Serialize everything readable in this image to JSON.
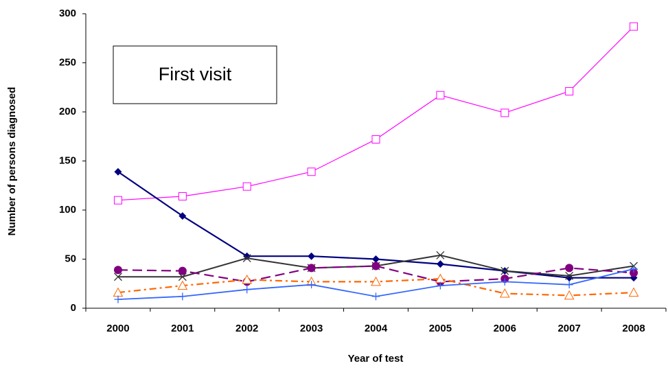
{
  "chart_data": {
    "type": "line",
    "annotation": "First visit",
    "xlabel": "Year of test",
    "ylabel": "Number of persons diagnosed",
    "categories": [
      "2000",
      "2001",
      "2002",
      "2003",
      "2004",
      "2005",
      "2006",
      "2007",
      "2008"
    ],
    "ylim": [
      0,
      300
    ],
    "yticks": [
      0,
      50,
      100,
      150,
      200,
      250,
      300
    ],
    "grid": false,
    "series": [
      {
        "color": "#ff00ff",
        "marker": "square-open",
        "dash": "solid",
        "width": 1.2,
        "values": [
          110,
          114,
          124,
          139,
          172,
          217,
          199,
          221,
          287
        ]
      },
      {
        "color": "#000080",
        "marker": "diamond",
        "dash": "solid",
        "width": 2.2,
        "values": [
          139,
          94,
          53,
          53,
          50,
          45,
          38,
          31,
          31
        ]
      },
      {
        "color": "#333333",
        "marker": "x",
        "dash": "solid",
        "width": 2,
        "values": [
          32,
          32,
          51,
          41,
          43,
          54,
          38,
          33,
          43
        ]
      },
      {
        "color": "#800080",
        "marker": "circle",
        "dash": "long-dash",
        "width": 2.2,
        "values": [
          39,
          38,
          27,
          41,
          43,
          27,
          30,
          41,
          36
        ]
      },
      {
        "color": "#ff6600",
        "marker": "triangle-open",
        "dash": "dash-dot",
        "width": 2.2,
        "values": [
          16,
          23,
          29,
          27,
          27,
          30,
          15,
          13,
          16
        ]
      },
      {
        "color": "#3366ff",
        "marker": "plus",
        "dash": "solid",
        "width": 1.8,
        "values": [
          9,
          12,
          19,
          24,
          12,
          23,
          27,
          24,
          40
        ]
      }
    ]
  }
}
